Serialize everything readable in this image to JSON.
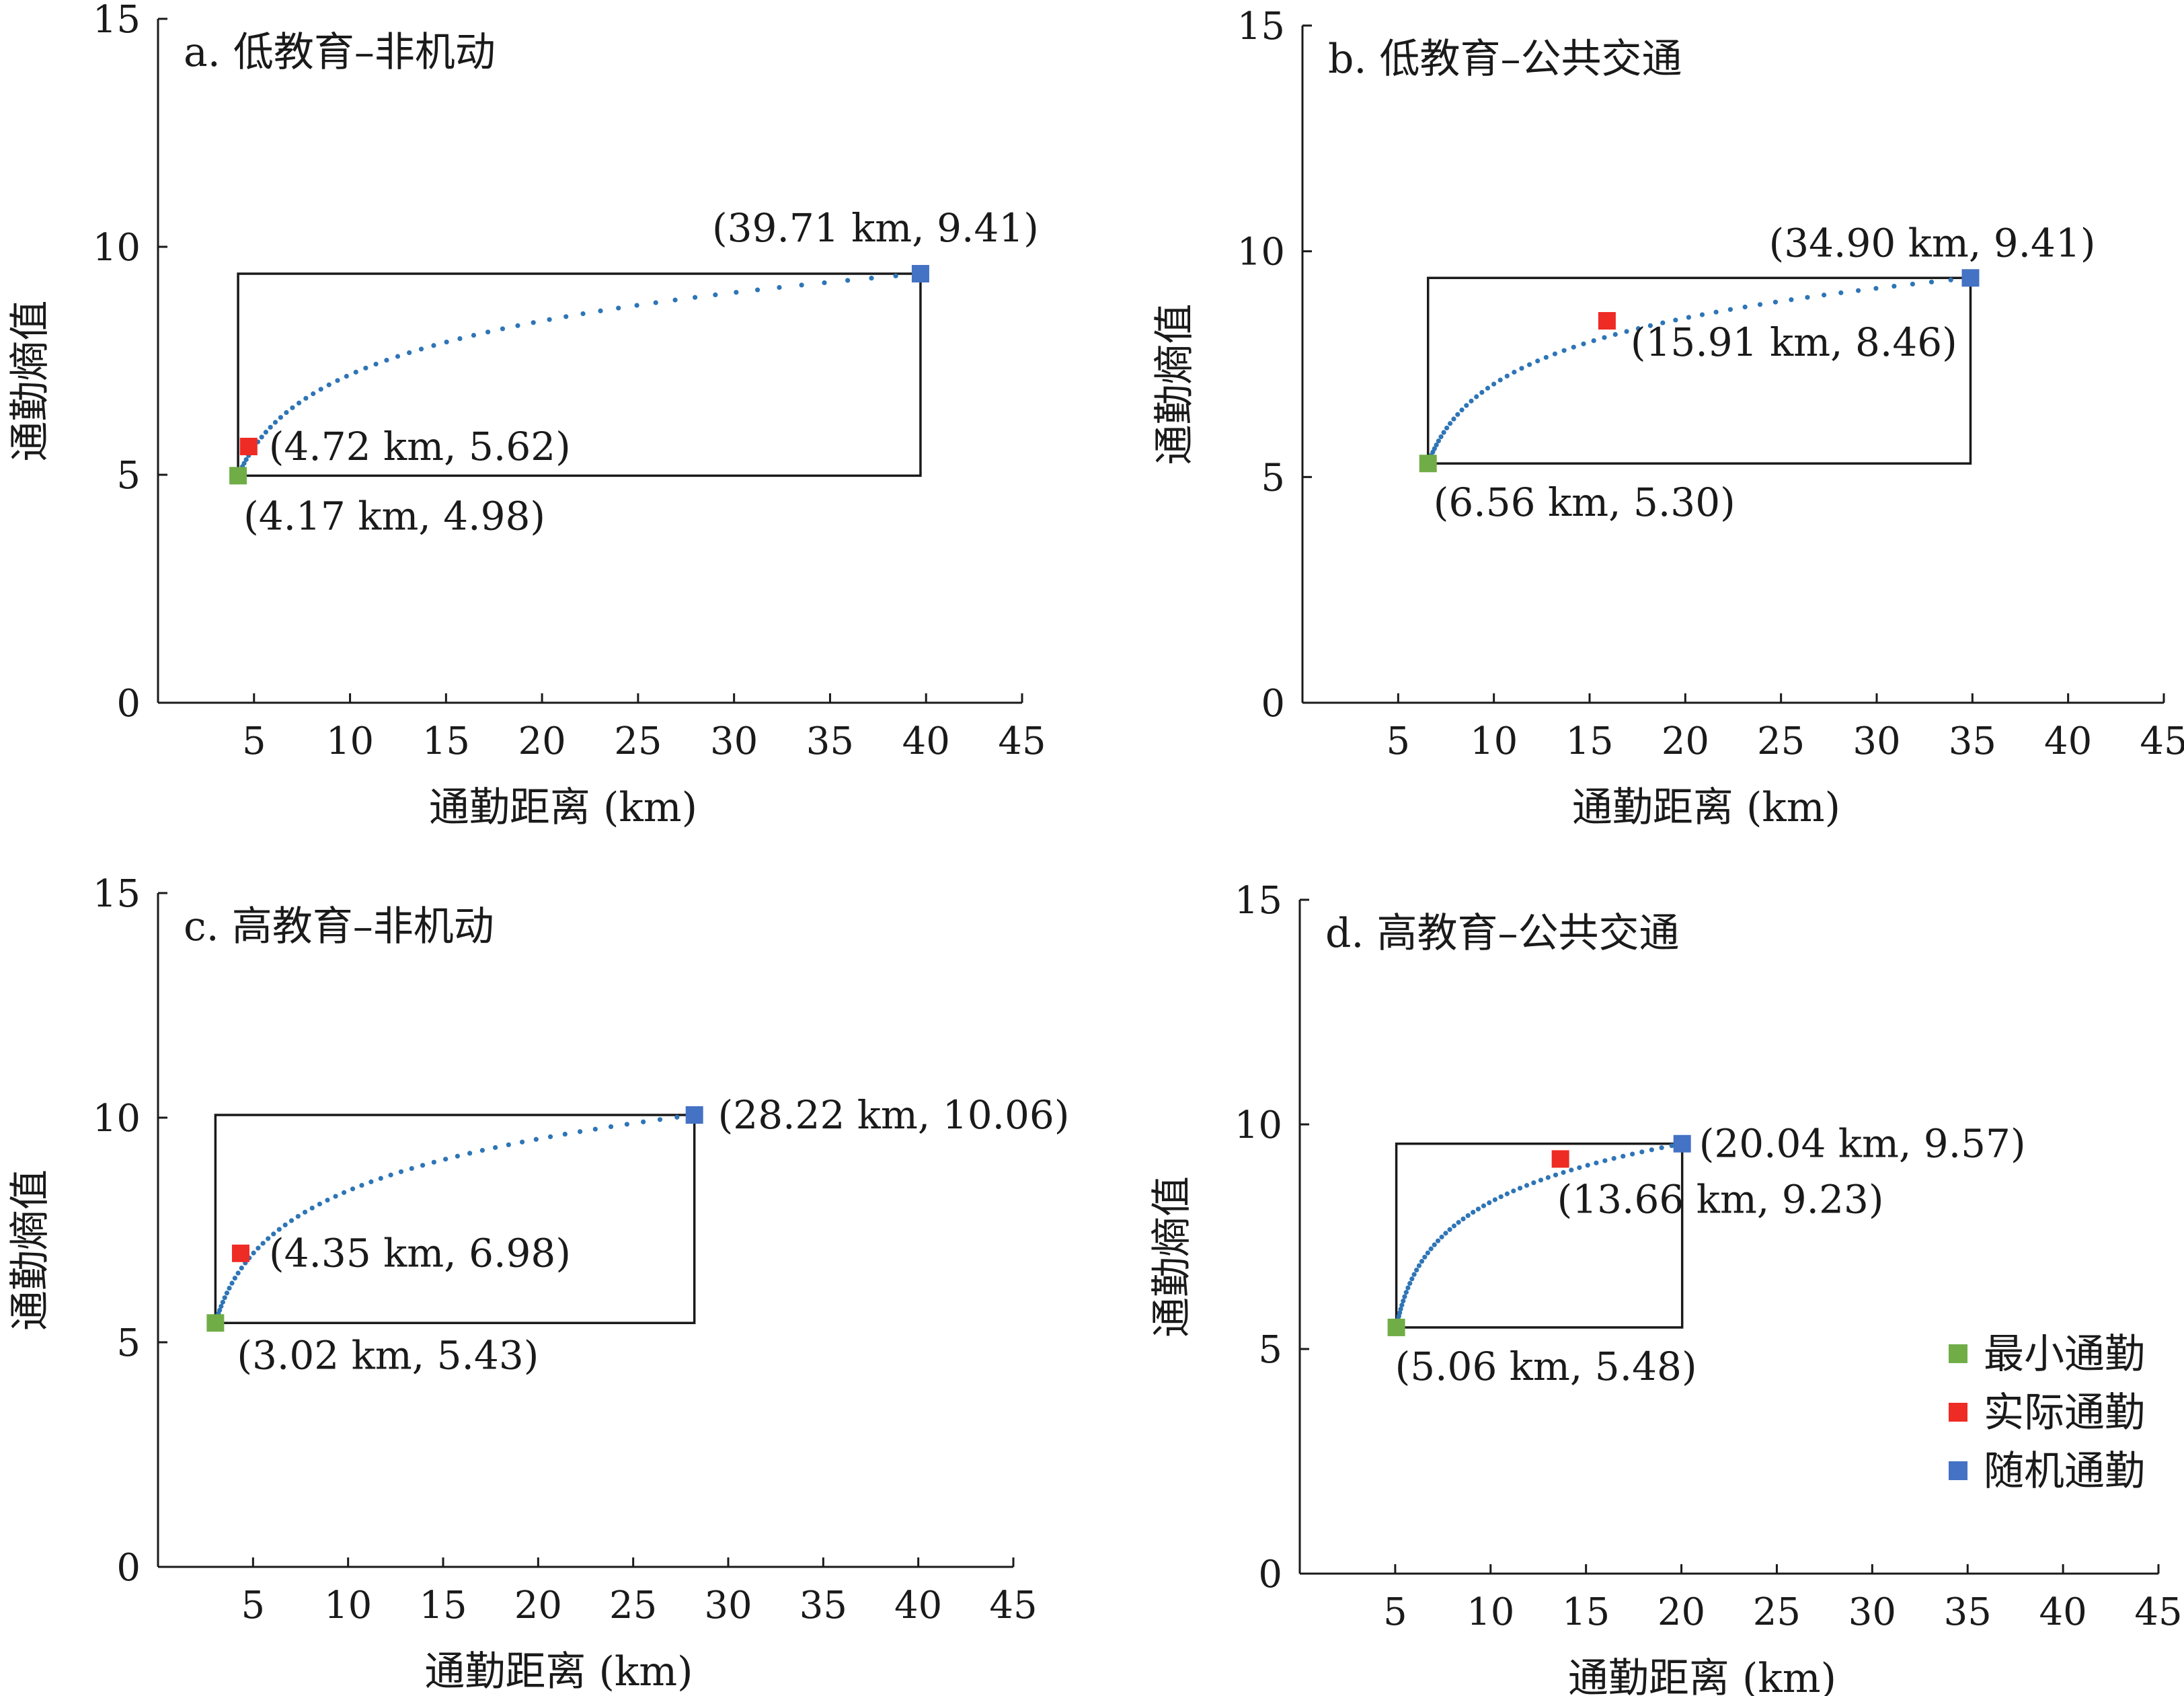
{
  "colors": {
    "min": "#70ad47",
    "actual": "#ee2b24",
    "random": "#4472c4",
    "curve": "#2e75b6",
    "axis": "#1a1a1a"
  },
  "legend": {
    "min": "最小通勤",
    "actual": "实际通勤",
    "random": "随机通勤"
  },
  "chart_data": [
    {
      "type": "scatter",
      "title": "a. 低教育–非机动",
      "xlabel": "通勤距离 (km)",
      "ylabel": "通勤熵值",
      "xlim": [
        0,
        45
      ],
      "ylim": [
        0,
        15
      ],
      "xticks": [
        "5",
        "10",
        "15",
        "20",
        "25",
        "30",
        "35",
        "40",
        "45"
      ],
      "yticks": [
        "0",
        "5",
        "10",
        "15"
      ],
      "min_point": {
        "x": 4.17,
        "y": 4.98,
        "label": "(4.17 km, 4.98)"
      },
      "actual_point": {
        "x": 4.72,
        "y": 5.62,
        "label": "(4.72 km, 5.62)"
      },
      "random_point": {
        "x": 39.71,
        "y": 9.41,
        "label": "(39.71 km, 9.41)"
      }
    },
    {
      "type": "scatter",
      "title": "b. 低教育–公共交通",
      "xlabel": "通勤距离 (km)",
      "ylabel": "通勤熵值",
      "xlim": [
        0,
        45
      ],
      "ylim": [
        0,
        15
      ],
      "xticks": [
        "5",
        "10",
        "15",
        "20",
        "25",
        "30",
        "35",
        "40",
        "45"
      ],
      "yticks": [
        "0",
        "5",
        "10",
        "15"
      ],
      "min_point": {
        "x": 6.56,
        "y": 5.3,
        "label": "(6.56 km, 5.30)"
      },
      "actual_point": {
        "x": 15.91,
        "y": 8.46,
        "label": "(15.91 km, 8.46)"
      },
      "random_point": {
        "x": 34.9,
        "y": 9.41,
        "label": "(34.90 km, 9.41)"
      }
    },
    {
      "type": "scatter",
      "title": "c. 高教育–非机动",
      "xlabel": "通勤距离 (km)",
      "ylabel": "通勤熵值",
      "xlim": [
        0,
        45
      ],
      "ylim": [
        0,
        15
      ],
      "xticks": [
        "5",
        "10",
        "15",
        "20",
        "25",
        "30",
        "35",
        "40",
        "45"
      ],
      "yticks": [
        "0",
        "5",
        "10",
        "15"
      ],
      "min_point": {
        "x": 3.02,
        "y": 5.43,
        "label": "(3.02 km, 5.43)"
      },
      "actual_point": {
        "x": 4.35,
        "y": 6.98,
        "label": "(4.35 km, 6.98)"
      },
      "random_point": {
        "x": 28.22,
        "y": 10.06,
        "label": "(28.22 km, 10.06)"
      }
    },
    {
      "type": "scatter",
      "title": "d. 高教育–公共交通",
      "xlabel": "通勤距离 (km)",
      "ylabel": "通勤熵值",
      "xlim": [
        0,
        45
      ],
      "ylim": [
        0,
        15
      ],
      "xticks": [
        "5",
        "10",
        "15",
        "20",
        "25",
        "30",
        "35",
        "40",
        "45"
      ],
      "yticks": [
        "0",
        "5",
        "10",
        "15"
      ],
      "min_point": {
        "x": 5.06,
        "y": 5.48,
        "label": "(5.06 km, 5.48)"
      },
      "actual_point": {
        "x": 13.66,
        "y": 9.23,
        "label": "(13.66 km, 9.23)"
      },
      "random_point": {
        "x": 20.04,
        "y": 9.57,
        "label": "(20.04 km, 9.57)"
      }
    }
  ]
}
